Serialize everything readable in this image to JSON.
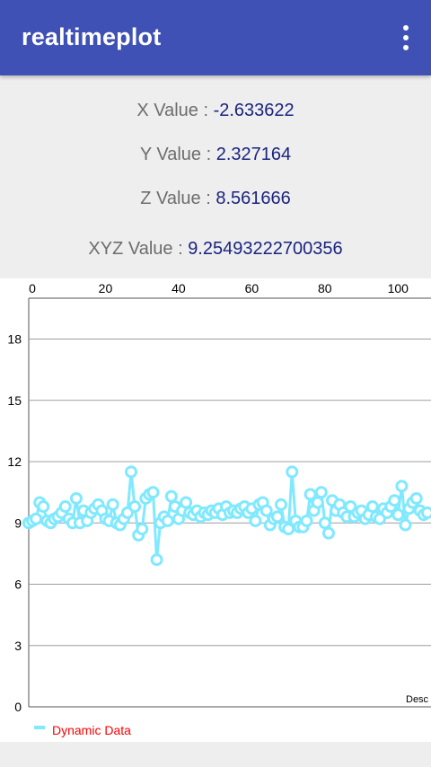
{
  "appbar": {
    "title": "realtimeplot",
    "menu_icon": "more-vert-icon"
  },
  "readings": {
    "x_label": "X Value : ",
    "x_value": "-2.633622",
    "y_label": "Y Value : ",
    "y_value": "2.327164",
    "z_label": "Z Value : ",
    "z_value": "8.561666",
    "xyz_label": "XYZ Value : ",
    "xyz_value": "9.25493222700356"
  },
  "colors": {
    "appbar": "#3f51b5",
    "value_text": "#1a237e",
    "series": "#80e9ff",
    "legend_text": "#ff0000"
  },
  "chart_data": {
    "type": "line",
    "title": "",
    "xlabel": "",
    "ylabel": "",
    "xlim": [
      0,
      110
    ],
    "ylim": [
      0,
      20
    ],
    "x_ticks": [
      0,
      20,
      40,
      60,
      80,
      100
    ],
    "y_ticks": [
      0,
      3,
      6,
      9,
      12,
      15,
      18
    ],
    "x_axis_position": "top",
    "grid": "horizontal",
    "legend_placement": "bottom-left",
    "description": "Desc",
    "series": [
      {
        "name": "Dynamic Data",
        "x": [
          0,
          1,
          2,
          3,
          4,
          5,
          6,
          7,
          8,
          9,
          10,
          11,
          12,
          13,
          14,
          15,
          16,
          17,
          18,
          19,
          20,
          21,
          22,
          23,
          24,
          25,
          26,
          27,
          28,
          29,
          30,
          31,
          32,
          33,
          34,
          35,
          36,
          37,
          38,
          39,
          40,
          41,
          42,
          43,
          44,
          45,
          46,
          47,
          48,
          49,
          50,
          51,
          52,
          53,
          54,
          55,
          56,
          57,
          58,
          59,
          60,
          61,
          62,
          63,
          64,
          65,
          66,
          67,
          68,
          69,
          70,
          71,
          72,
          73,
          74,
          75,
          76,
          77,
          78,
          79,
          80,
          81,
          82,
          83,
          84,
          85,
          86,
          87,
          88,
          89,
          90,
          91,
          92,
          93,
          94,
          95,
          96,
          97,
          98,
          99,
          100,
          101,
          102,
          103,
          104,
          105,
          106,
          107,
          108,
          109
        ],
        "y": [
          9.0,
          9.1,
          9.2,
          10.0,
          9.8,
          9.1,
          9.0,
          9.2,
          9.3,
          9.5,
          9.8,
          9.2,
          9.0,
          10.2,
          9.0,
          9.6,
          9.1,
          9.5,
          9.7,
          9.9,
          9.6,
          9.2,
          9.1,
          9.9,
          9.0,
          8.9,
          9.2,
          9.5,
          11.5,
          9.8,
          8.4,
          8.7,
          10.2,
          10.4,
          10.5,
          7.2,
          9.0,
          9.3,
          9.1,
          10.3,
          9.8,
          9.2,
          9.6,
          10.0,
          9.5,
          9.4,
          9.6,
          9.3,
          9.5,
          9.4,
          9.6,
          9.5,
          9.7,
          9.4,
          9.8,
          9.5,
          9.6,
          9.5,
          9.7,
          9.8,
          9.5,
          9.7,
          9.1,
          9.9,
          10.0,
          9.6,
          8.9,
          9.2,
          9.3,
          9.9,
          8.8,
          8.7,
          11.5,
          9.1,
          8.8,
          8.8,
          9.1,
          10.4,
          9.6,
          10.0,
          10.5,
          9.0,
          8.5,
          10.1,
          9.6,
          9.9,
          9.5,
          9.3,
          9.8,
          9.3,
          9.5,
          9.6,
          9.2,
          9.4,
          9.8,
          9.3,
          9.2,
          9.7,
          9.5,
          9.8,
          10.1,
          9.4,
          10.8,
          8.9,
          9.7,
          10.0,
          10.2,
          9.6,
          9.4,
          9.5
        ]
      }
    ]
  }
}
